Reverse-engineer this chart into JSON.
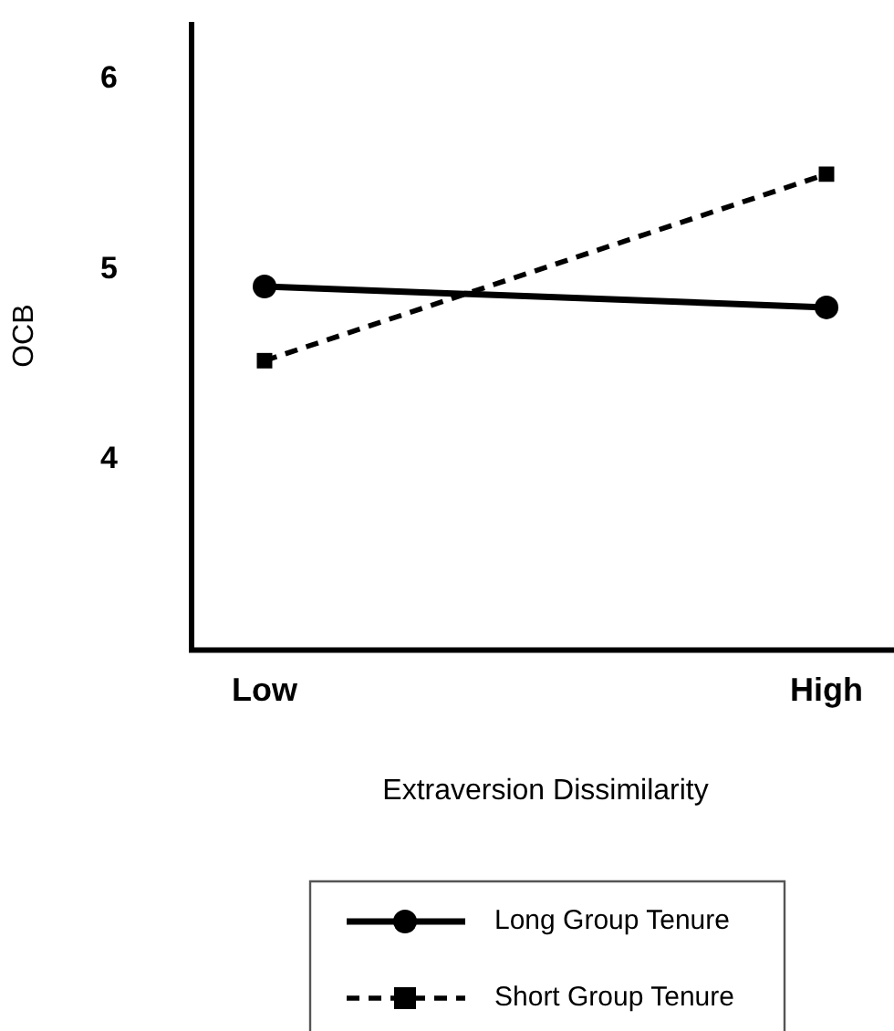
{
  "chart_data": {
    "type": "line",
    "xlabel": "Extraversion Dissimilarity",
    "ylabel": "OCB",
    "categories": [
      "Low",
      "High"
    ],
    "series": [
      {
        "name": "Long Group Tenure",
        "color": "#000000",
        "values": [
          4.91,
          4.8
        ],
        "marker": "circle",
        "line_style": "solid"
      },
      {
        "name": "Short Group Tenure",
        "color": "#000000",
        "values": [
          4.52,
          5.5
        ],
        "marker": "square",
        "line_style": "dashed"
      }
    ],
    "ylim": [
      3,
      6.3
    ],
    "yticks": [
      4,
      5,
      6
    ],
    "legend": "bottom",
    "grid": false
  }
}
